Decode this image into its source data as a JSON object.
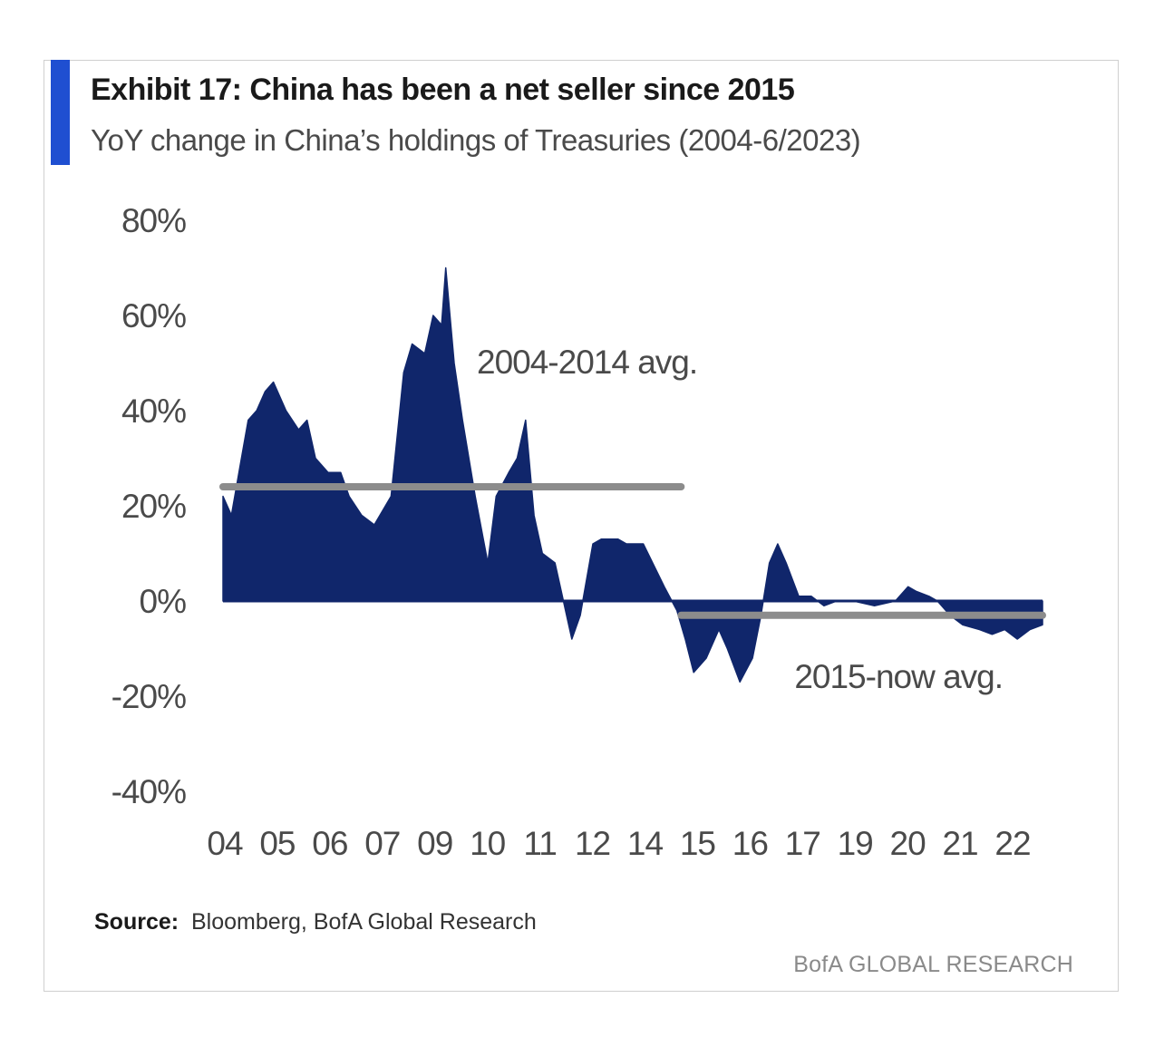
{
  "exhibit": {
    "title": "Exhibit 17: China has been a net seller since 2015",
    "subtitle": "YoY change in China’s holdings of Treasuries (2004-6/2023)",
    "source_label": "Source:",
    "source_text": "Bloomberg, BofA Global Research",
    "footer": "BofA GLOBAL RESEARCH"
  },
  "colors": {
    "accent": "#1f4fd1",
    "series": "#10266b",
    "avg_line": "#8c8c8c"
  },
  "chart_data": {
    "type": "area",
    "title": "Exhibit 17: China has been a net seller since 2015",
    "subtitle": "YoY change in China’s holdings of Treasuries (2004-6/2023)",
    "xlabel": "",
    "ylabel": "",
    "ylim": [
      -40,
      80
    ],
    "yticks": [
      80,
      60,
      40,
      20,
      0,
      -20,
      -40
    ],
    "ytick_labels": [
      "80%",
      "60%",
      "40%",
      "20%",
      "0%",
      "-20%",
      "-40%"
    ],
    "xtick_labels": [
      "04",
      "05",
      "06",
      "07",
      "09",
      "10",
      "11",
      "12",
      "14",
      "15",
      "16",
      "17",
      "19",
      "20",
      "21",
      "22"
    ],
    "series": [
      {
        "name": "",
        "x": [
          2004.0,
          2004.2,
          2004.4,
          2004.6,
          2004.8,
          2005.0,
          2005.2,
          2005.5,
          2005.8,
          2006.0,
          2006.2,
          2006.5,
          2006.8,
          2007.0,
          2007.3,
          2007.6,
          2008.0,
          2008.3,
          2008.5,
          2008.8,
          2009.0,
          2009.2,
          2009.3,
          2009.5,
          2009.7,
          2010.0,
          2010.3,
          2010.5,
          2010.8,
          2011.0,
          2011.2,
          2011.4,
          2011.6,
          2011.9,
          2012.1,
          2012.3,
          2012.5,
          2012.8,
          2013.0,
          2013.2,
          2013.4,
          2013.6,
          2014.0,
          2014.5,
          2014.8,
          2015.0,
          2015.2,
          2015.5,
          2015.8,
          2016.0,
          2016.3,
          2016.6,
          2016.8,
          2017.0,
          2017.2,
          2017.4,
          2017.7,
          2018.0,
          2018.3,
          2018.6,
          2019.0,
          2019.5,
          2020.0,
          2020.3,
          2020.5,
          2020.8,
          2021.0,
          2021.3,
          2021.6,
          2022.0,
          2022.3,
          2022.6,
          2022.9,
          2023.2,
          2023.5
        ],
        "y": [
          22,
          18,
          28,
          38,
          40,
          44,
          46,
          40,
          36,
          38,
          30,
          27,
          27,
          22,
          18,
          16,
          22,
          48,
          54,
          52,
          60,
          58,
          70,
          50,
          38,
          22,
          8,
          22,
          27,
          30,
          38,
          18,
          10,
          8,
          0,
          -8,
          -3,
          12,
          13,
          13,
          13,
          12,
          12,
          3,
          -2,
          -8,
          -15,
          -12,
          -6,
          -10,
          -17,
          -12,
          -3,
          8,
          12,
          8,
          1,
          1,
          -1,
          0,
          0,
          -1,
          0,
          3,
          2,
          1,
          0,
          -3,
          -5,
          -6,
          -7,
          -6,
          -8,
          -6,
          -5
        ]
      }
    ],
    "annotations": [
      {
        "label": "2004-2014 avg.",
        "x_start": 2004.0,
        "x_end": 2014.9,
        "y": 24
      },
      {
        "label": "2015-now avg.",
        "x_start": 2014.9,
        "x_end": 2023.5,
        "y": -3
      }
    ],
    "grid": false,
    "legend": "none"
  }
}
